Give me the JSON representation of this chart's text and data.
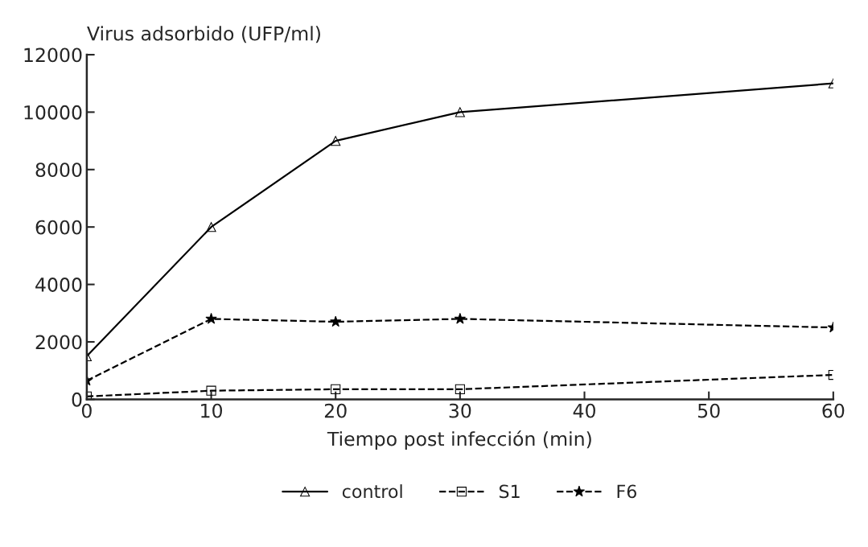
{
  "chart_data": {
    "type": "line",
    "ylabel": "Virus adsorbido (UFP/ml)",
    "xlabel": "Tiempo post infección (min)",
    "x": [
      0,
      10,
      20,
      30,
      60
    ],
    "series": [
      {
        "name": "control",
        "color": "#000000",
        "marker": "triangle",
        "line_style": "solid",
        "values": [
          1500,
          6000,
          9000,
          10000,
          11000
        ]
      },
      {
        "name": "S1",
        "color": "#000000",
        "marker": "square",
        "line_style": "dashed",
        "values": [
          100,
          300,
          350,
          350,
          850
        ]
      },
      {
        "name": "F6",
        "color": "#000000",
        "marker": "star",
        "line_style": "dashed",
        "values": [
          650,
          2800,
          2700,
          2800,
          2500
        ]
      }
    ],
    "xlim": [
      0,
      60
    ],
    "xticks": [
      0,
      10,
      20,
      30,
      40,
      50,
      60
    ],
    "ylim": [
      0,
      12000
    ],
    "yticks": [
      0,
      2000,
      4000,
      6000,
      8000,
      10000,
      12000
    ],
    "grid": false,
    "legend": "bottom"
  }
}
